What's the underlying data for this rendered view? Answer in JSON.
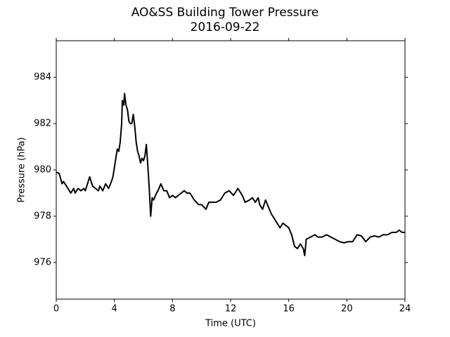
{
  "chart_data": {
    "type": "line",
    "title": "AO&SS Building Tower Pressure",
    "subtitle": "2016-09-22",
    "x_label": "Time (UTC)",
    "y_label": "Pressure (hPa)",
    "color": "#000000",
    "xlim": [
      0,
      24
    ],
    "xticks": [
      0,
      4,
      8,
      12,
      16,
      20,
      24
    ],
    "ylim": [
      974.42,
      985.58
    ],
    "yticks": [
      976,
      978,
      980,
      982,
      984
    ],
    "x": [
      0,
      0.2,
      0.4,
      0.5,
      0.7,
      0.9,
      1.0,
      1.2,
      1.3,
      1.5,
      1.7,
      1.9,
      2.0,
      2.2,
      2.3,
      2.5,
      2.7,
      2.9,
      3.0,
      3.2,
      3.4,
      3.6,
      3.8,
      3.9,
      4.0,
      4.1,
      4.2,
      4.3,
      4.4,
      4.5,
      4.55,
      4.65,
      4.7,
      4.8,
      4.9,
      5.0,
      5.1,
      5.2,
      5.3,
      5.4,
      5.5,
      5.6,
      5.7,
      5.8,
      5.9,
      6.0,
      6.1,
      6.2,
      6.3,
      6.4,
      6.5,
      6.6,
      6.7,
      6.9,
      7.0,
      7.2,
      7.4,
      7.6,
      7.8,
      8.0,
      8.2,
      8.4,
      8.6,
      8.8,
      9.0,
      9.2,
      9.5,
      9.8,
      10.0,
      10.3,
      10.5,
      10.8,
      11.0,
      11.3,
      11.6,
      11.9,
      12.2,
      12.5,
      12.8,
      13.0,
      13.3,
      13.5,
      13.7,
      13.9,
      14.0,
      14.2,
      14.4,
      14.6,
      14.8,
      15.0,
      15.2,
      15.4,
      15.6,
      15.8,
      16.0,
      16.2,
      16.4,
      16.6,
      16.8,
      17.0,
      17.1,
      17.2,
      17.5,
      17.8,
      18.0,
      18.3,
      18.6,
      18.9,
      19.2,
      19.5,
      19.8,
      20.1,
      20.4,
      20.7,
      21.0,
      21.3,
      21.6,
      21.9,
      22.2,
      22.5,
      22.8,
      23.1,
      23.4,
      23.6,
      23.8,
      24.0
    ],
    "values": [
      979.9,
      979.85,
      979.4,
      979.5,
      979.3,
      979.1,
      979.0,
      979.2,
      979.0,
      979.2,
      979.1,
      979.2,
      979.1,
      979.5,
      979.7,
      979.3,
      979.2,
      979.1,
      979.3,
      979.1,
      979.4,
      979.2,
      979.5,
      979.7,
      980.1,
      980.5,
      980.9,
      980.8,
      981.2,
      982.0,
      983.0,
      982.8,
      983.3,
      982.8,
      982.6,
      982.1,
      982.0,
      982.0,
      982.4,
      981.9,
      981.2,
      980.8,
      980.6,
      980.3,
      980.5,
      980.4,
      980.6,
      981.1,
      980.2,
      979.2,
      978.0,
      978.8,
      978.7,
      979.0,
      979.1,
      979.4,
      979.1,
      979.1,
      978.8,
      978.9,
      978.8,
      978.9,
      979.0,
      979.1,
      979.0,
      979.0,
      978.7,
      978.5,
      978.5,
      978.3,
      978.6,
      978.6,
      978.6,
      978.7,
      979.0,
      979.1,
      978.9,
      979.2,
      978.9,
      978.6,
      978.7,
      978.8,
      978.6,
      978.8,
      978.5,
      978.3,
      978.7,
      978.4,
      978.1,
      977.9,
      977.7,
      977.5,
      977.7,
      977.6,
      977.5,
      977.2,
      976.7,
      976.6,
      976.8,
      976.6,
      976.3,
      977.0,
      977.1,
      977.2,
      977.1,
      977.1,
      977.2,
      977.1,
      977.0,
      976.9,
      976.85,
      976.9,
      976.9,
      977.2,
      977.15,
      976.9,
      977.1,
      977.15,
      977.1,
      977.2,
      977.2,
      977.3,
      977.3,
      977.4,
      977.3,
      977.3
    ]
  }
}
